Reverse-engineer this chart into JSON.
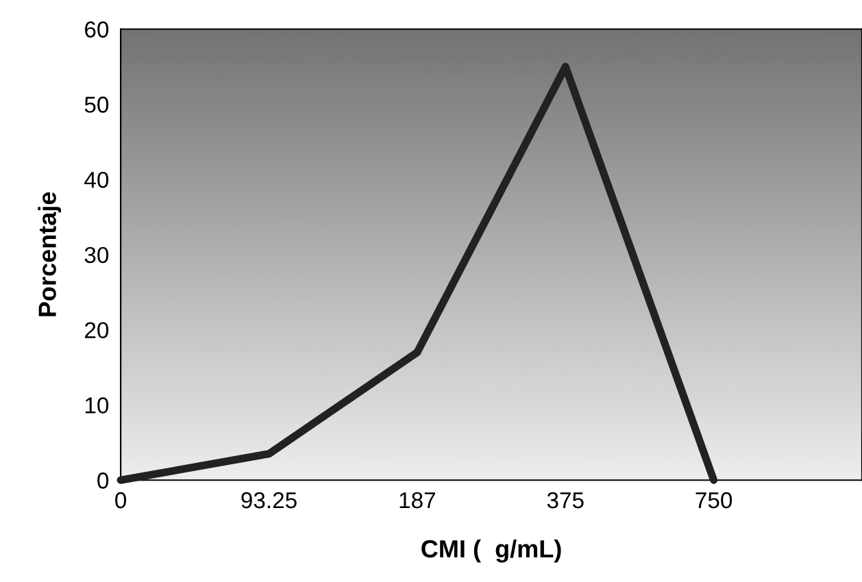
{
  "chart_data": {
    "type": "line",
    "xlabel": "CMI (  g/mL)",
    "ylabel": "Porcentaje",
    "categories": [
      "0",
      "93.25",
      "187",
      "375",
      "750",
      null
    ],
    "series": [
      {
        "color": "#222222",
        "values": [
          0,
          3.5,
          17,
          55,
          0,
          null
        ]
      }
    ],
    "ylim": [
      0,
      60
    ],
    "yticks": [
      0,
      10,
      20,
      30,
      40,
      50,
      60
    ],
    "grid": false,
    "marker": "none",
    "line_style": "solid"
  }
}
